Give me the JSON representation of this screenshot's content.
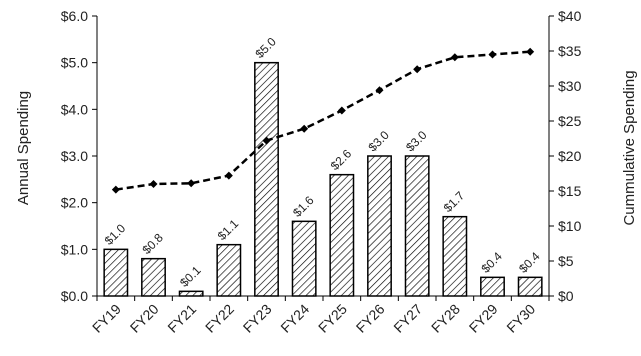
{
  "chart_data": {
    "type": "bar",
    "categories": [
      "FY19",
      "FY20",
      "FY21",
      "FY22",
      "FY23",
      "FY24",
      "FY25",
      "FY26",
      "FY27",
      "FY28",
      "FY29",
      "FY30"
    ],
    "series": [
      {
        "values": [
          1.0,
          0.8,
          0.1,
          1.1,
          5.0,
          1.6,
          2.6,
          3.0,
          3.0,
          1.7,
          0.4,
          0.4
        ],
        "data_labels": [
          "$1.0",
          "$0.8",
          "$0.1",
          "$1.1",
          "$5.0",
          "$1.6",
          "$2.6",
          "$3.0",
          "$3.0",
          "$1.7",
          "$0.4",
          "$0.4"
        ],
        "type": "bar",
        "axis": "left",
        "pattern": "diagonal-hatch"
      },
      {
        "values": [
          15.2,
          16.0,
          16.1,
          17.2,
          22.2,
          23.9,
          26.5,
          29.4,
          32.4,
          34.1,
          34.5,
          34.9
        ],
        "type": "line",
        "axis": "right",
        "line_style": "dashed",
        "marker": "diamond",
        "color": "#000000"
      }
    ],
    "ylabel": "Annual Spending",
    "y2label": "Cummulative Spending",
    "ylim": [
      0,
      6
    ],
    "y2lim": [
      0,
      40
    ],
    "yticks": [
      "$0.0",
      "$1.0",
      "$2.0",
      "$3.0",
      "$4.0",
      "$5.0",
      "$6.0"
    ],
    "y2ticks": [
      "$0",
      "$5",
      "$10",
      "$15",
      "$20",
      "$25",
      "$30",
      "$35",
      "$40"
    ],
    "grid": false
  }
}
